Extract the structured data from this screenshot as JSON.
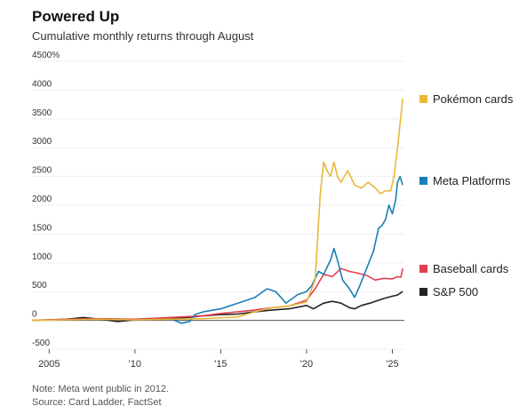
{
  "header": {
    "title": "Powered Up",
    "subtitle": "Cumulative monthly returns through August"
  },
  "notes": {
    "note": "Note: Meta went public in 2012.",
    "source": "Source: Card Ladder, FactSet"
  },
  "chart_data": {
    "type": "line",
    "title": "Powered Up",
    "subtitle": "Cumulative monthly returns through August",
    "xlabel": "",
    "ylabel": "",
    "xlim": [
      2004,
      2025.7
    ],
    "ylim": [
      -500,
      4500
    ],
    "y_ticks": [
      {
        "value": 4500,
        "label": "4500%"
      },
      {
        "value": 4000,
        "label": "4000"
      },
      {
        "value": 3500,
        "label": "3500"
      },
      {
        "value": 3000,
        "label": "3000"
      },
      {
        "value": 2500,
        "label": "2500"
      },
      {
        "value": 2000,
        "label": "2000"
      },
      {
        "value": 1500,
        "label": "1500"
      },
      {
        "value": 1000,
        "label": "1000"
      },
      {
        "value": 500,
        "label": "500"
      },
      {
        "value": 0,
        "label": "0"
      },
      {
        "value": -500,
        "label": "-500"
      }
    ],
    "x_ticks": [
      {
        "value": 2005,
        "label": "2005"
      },
      {
        "value": 2010,
        "label": "'10"
      },
      {
        "value": 2015,
        "label": "'15"
      },
      {
        "value": 2020,
        "label": "'20"
      },
      {
        "value": 2025,
        "label": "'25"
      }
    ],
    "grid": true,
    "legend_placement": "right, at line ends",
    "series": [
      {
        "name": "Pokémon cards",
        "color": "#e8b83a",
        "points": [
          [
            2004,
            0
          ],
          [
            2006,
            10
          ],
          [
            2008,
            20
          ],
          [
            2010,
            10
          ],
          [
            2012,
            20
          ],
          [
            2014,
            30
          ],
          [
            2016,
            60
          ],
          [
            2017,
            150
          ],
          [
            2018,
            220
          ],
          [
            2019,
            250
          ],
          [
            2020,
            320
          ],
          [
            2020.5,
            700
          ],
          [
            2020.8,
            2200
          ],
          [
            2021,
            2750
          ],
          [
            2021.2,
            2600
          ],
          [
            2021.4,
            2500
          ],
          [
            2021.6,
            2750
          ],
          [
            2021.8,
            2500
          ],
          [
            2022,
            2400
          ],
          [
            2022.4,
            2600
          ],
          [
            2022.8,
            2350
          ],
          [
            2023.2,
            2300
          ],
          [
            2023.6,
            2400
          ],
          [
            2024,
            2300
          ],
          [
            2024.3,
            2200
          ],
          [
            2024.6,
            2250
          ],
          [
            2024.9,
            2250
          ],
          [
            2025.1,
            2500
          ],
          [
            2025.3,
            3000
          ],
          [
            2025.5,
            3550
          ],
          [
            2025.6,
            3850
          ]
        ]
      },
      {
        "name": "Meta Platforms",
        "color": "#1a7fb5",
        "points": [
          [
            2012.3,
            0
          ],
          [
            2012.7,
            -50
          ],
          [
            2013.2,
            -20
          ],
          [
            2013.5,
            100
          ],
          [
            2014,
            150
          ],
          [
            2015,
            200
          ],
          [
            2016,
            300
          ],
          [
            2017,
            400
          ],
          [
            2017.7,
            550
          ],
          [
            2018.2,
            500
          ],
          [
            2018.8,
            300
          ],
          [
            2019.5,
            450
          ],
          [
            2020,
            500
          ],
          [
            2020.3,
            600
          ],
          [
            2020.7,
            850
          ],
          [
            2021,
            800
          ],
          [
            2021.4,
            1050
          ],
          [
            2021.6,
            1250
          ],
          [
            2021.8,
            1050
          ],
          [
            2022.1,
            700
          ],
          [
            2022.5,
            550
          ],
          [
            2022.8,
            400
          ],
          [
            2023.1,
            600
          ],
          [
            2023.5,
            900
          ],
          [
            2023.9,
            1200
          ],
          [
            2024.2,
            1600
          ],
          [
            2024.4,
            1650
          ],
          [
            2024.6,
            1750
          ],
          [
            2024.8,
            2000
          ],
          [
            2025.0,
            1850
          ],
          [
            2025.2,
            2100
          ],
          [
            2025.3,
            2400
          ],
          [
            2025.45,
            2500
          ],
          [
            2025.6,
            2350
          ]
        ]
      },
      {
        "name": "Baseball cards",
        "color": "#e04050",
        "points": [
          [
            2004,
            0
          ],
          [
            2006,
            20
          ],
          [
            2008,
            30
          ],
          [
            2010,
            20
          ],
          [
            2012,
            50
          ],
          [
            2014,
            80
          ],
          [
            2015,
            120
          ],
          [
            2016,
            150
          ],
          [
            2017,
            180
          ],
          [
            2018,
            220
          ],
          [
            2019,
            250
          ],
          [
            2020,
            350
          ],
          [
            2020.5,
            550
          ],
          [
            2021,
            800
          ],
          [
            2021.5,
            760
          ],
          [
            2022,
            900
          ],
          [
            2022.5,
            850
          ],
          [
            2023,
            820
          ],
          [
            2023.5,
            780
          ],
          [
            2024,
            700
          ],
          [
            2024.5,
            730
          ],
          [
            2025,
            720
          ],
          [
            2025.3,
            760
          ],
          [
            2025.5,
            750
          ],
          [
            2025.6,
            900
          ]
        ]
      },
      {
        "name": "S&P 500",
        "color": "#222222",
        "points": [
          [
            2004,
            0
          ],
          [
            2005,
            10
          ],
          [
            2006,
            20
          ],
          [
            2007,
            50
          ],
          [
            2008,
            20
          ],
          [
            2009,
            -20
          ],
          [
            2010,
            10
          ],
          [
            2011,
            20
          ],
          [
            2012,
            30
          ],
          [
            2013,
            50
          ],
          [
            2014,
            80
          ],
          [
            2015,
            100
          ],
          [
            2016,
            110
          ],
          [
            2017,
            150
          ],
          [
            2018,
            180
          ],
          [
            2019,
            200
          ],
          [
            2020,
            260
          ],
          [
            2020.4,
            200
          ],
          [
            2021,
            300
          ],
          [
            2021.5,
            330
          ],
          [
            2022,
            300
          ],
          [
            2022.5,
            220
          ],
          [
            2022.8,
            200
          ],
          [
            2023.2,
            260
          ],
          [
            2023.7,
            300
          ],
          [
            2024,
            330
          ],
          [
            2024.5,
            380
          ],
          [
            2025,
            420
          ],
          [
            2025.3,
            440
          ],
          [
            2025.6,
            500
          ]
        ]
      }
    ]
  }
}
